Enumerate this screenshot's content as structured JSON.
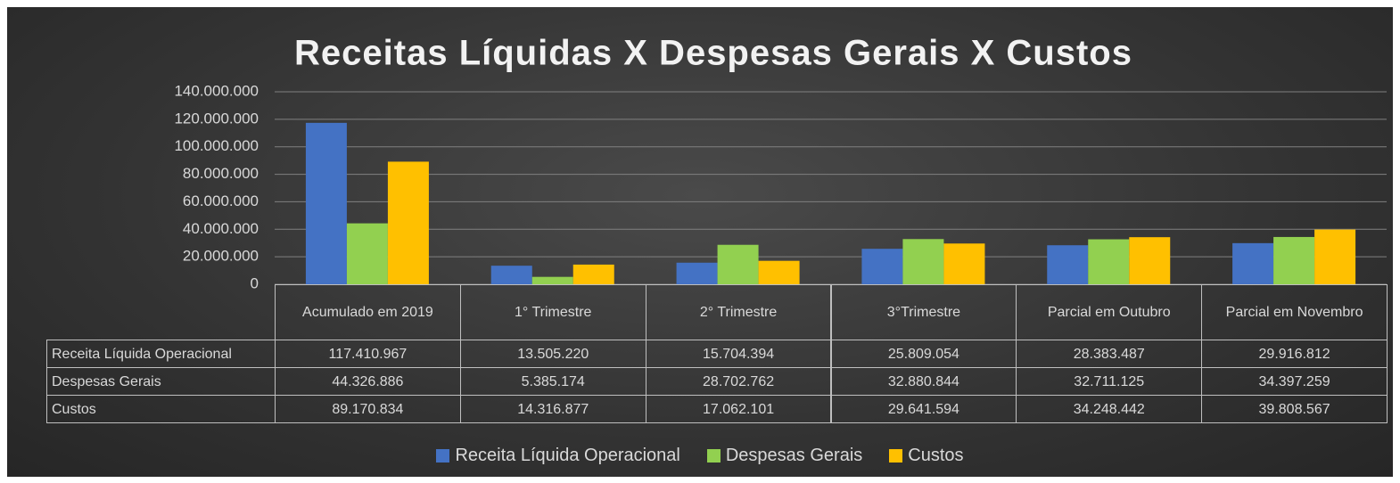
{
  "chart_data": {
    "type": "bar",
    "title": "Receitas Líquidas X Despesas Gerais X Custos",
    "categories": [
      "Acumulado em 2019",
      "1° Trimestre",
      "2° Trimestre",
      "3°Trimestre",
      "Parcial em Outubro",
      "Parcial em Novembro"
    ],
    "series": [
      {
        "name": "Receita Líquida Operacional",
        "color": "#4472c4",
        "values": [
          117410967,
          13505220,
          15704394,
          25809054,
          28383487,
          29916812
        ],
        "value_labels": [
          "117.410.967",
          "13.505.220",
          "15.704.394",
          "25.809.054",
          "28.383.487",
          "29.916.812"
        ]
      },
      {
        "name": "Despesas Gerais",
        "color": "#92d050",
        "values": [
          44326886,
          5385174,
          28702762,
          32880844,
          32711125,
          34397259
        ],
        "value_labels": [
          "44.326.886",
          "5.385.174",
          "28.702.762",
          "32.880.844",
          "32.711.125",
          "34.397.259"
        ]
      },
      {
        "name": "Custos",
        "color": "#ffc000",
        "values": [
          89170834,
          14316877,
          17062101,
          29641594,
          34248442,
          39808567
        ],
        "value_labels": [
          "89.170.834",
          "14.316.877",
          "17.062.101",
          "29.641.594",
          "34.248.442",
          "39.808.567"
        ]
      }
    ],
    "ylim": [
      0,
      140000000
    ],
    "yticks": [
      0,
      {
        "value": 20000000,
        "label": "20.000.000"
      },
      {
        "value": 40000000,
        "label": "40.000.000"
      },
      {
        "value": 60000000,
        "label": "60.000.000"
      },
      {
        "value": 80000000,
        "label": "80.000.000"
      },
      {
        "value": 100000000,
        "label": "100.000.000"
      },
      {
        "value": 120000000,
        "label": "120.000.000"
      },
      {
        "value": 140000000,
        "label": "140.000.000"
      }
    ],
    "grid": true,
    "legend": "bottom"
  }
}
